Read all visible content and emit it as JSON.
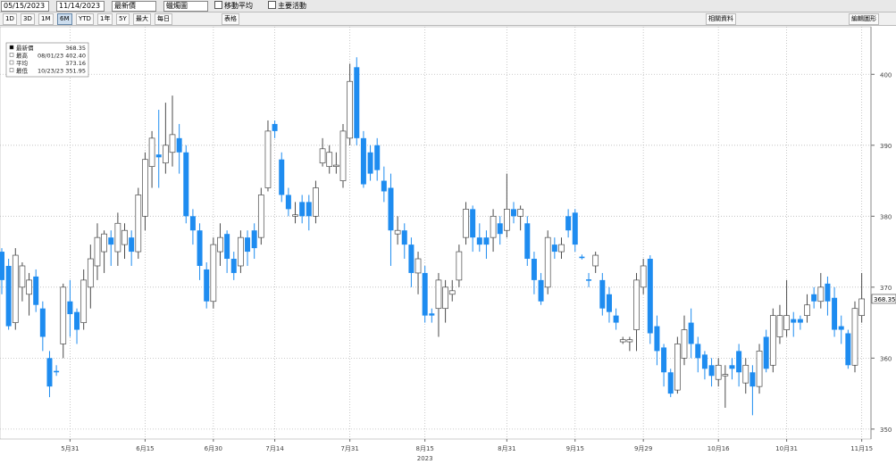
{
  "toolbar": {
    "start_date": "05/15/2023",
    "end_date": "11/14/2023",
    "field": "最新價",
    "chart_style": "蠟燭圖",
    "moving_average": "移動平均",
    "events": "主要活動",
    "periods": [
      "1D",
      "3D",
      "1M",
      "6M",
      "YTD",
      "1年",
      "5Y",
      "最大"
    ],
    "frequency": "每日",
    "table": "表格",
    "related": "相關資料",
    "edit": "編輯圖形"
  },
  "chart_data": {
    "type": "candlestick",
    "legend": [
      {
        "name": "最新價",
        "value": "368.35"
      },
      {
        "name": "最高",
        "date": "08/01/23",
        "value": "402.40"
      },
      {
        "name": "平均",
        "value": "373.16"
      },
      {
        "name": "最低",
        "date": "10/23/23",
        "value": "351.95"
      }
    ],
    "x_label": "2023",
    "categories": [
      null,
      null,
      null,
      null,
      null,
      null,
      null,
      null,
      null,
      null,
      "5月31",
      null,
      null,
      null,
      null,
      null,
      null,
      null,
      null,
      null,
      null,
      "6月15",
      null,
      null,
      null,
      null,
      null,
      null,
      null,
      null,
      null,
      "6月30",
      null,
      null,
      null,
      null,
      null,
      null,
      null,
      null,
      "7月14",
      null,
      null,
      null,
      null,
      null,
      null,
      null,
      null,
      null,
      null,
      "7月31",
      null,
      null,
      null,
      null,
      null,
      null,
      null,
      null,
      null,
      null,
      "8月15",
      null,
      null,
      null,
      null,
      null,
      null,
      null,
      null,
      null,
      null,
      null,
      "8月31",
      null,
      null,
      null,
      null,
      null,
      null,
      null,
      null,
      null,
      "9月15",
      null,
      null,
      null,
      null,
      null,
      null,
      null,
      null,
      null,
      "9月29",
      null,
      null,
      null,
      null,
      null,
      null,
      null,
      null,
      null,
      null,
      "10月16",
      null,
      null,
      null,
      null,
      null,
      null,
      null,
      null,
      null,
      "10月31",
      null,
      null,
      null,
      null,
      null,
      null,
      null,
      null,
      null,
      null,
      "11月15"
    ],
    "open": [
      375,
      373,
      365,
      370,
      369,
      371.5,
      367,
      360,
      358.2,
      362,
      368,
      366.5,
      365,
      370,
      373,
      375,
      377,
      375,
      376,
      377,
      375,
      380,
      387,
      388.7,
      387.5,
      389,
      391,
      389,
      380,
      378,
      372.5,
      368,
      375,
      377.5,
      374,
      373,
      377,
      378,
      377,
      384,
      393,
      388,
      383,
      380,
      382,
      382,
      380,
      387.5,
      387,
      387,
      385,
      391,
      401,
      391,
      389,
      390,
      385,
      384,
      377.5,
      378,
      376,
      372,
      372,
      366.3,
      367,
      367,
      369,
      371,
      377,
      381,
      377,
      377,
      377,
      379,
      378,
      381,
      380,
      379,
      374,
      371,
      370,
      376,
      375,
      380,
      380.5,
      374.3,
      371.1,
      373,
      371,
      369,
      366,
      362.3,
      362.3,
      364,
      370,
      374,
      364.5,
      361.5,
      358,
      355.5,
      360,
      365,
      362,
      360.5,
      359,
      357,
      357.5,
      359,
      361,
      356.5,
      358,
      356,
      363,
      359,
      363,
      364,
      365.5,
      365.5,
      366,
      369,
      368,
      370.5,
      368.5,
      364.5,
      363.5,
      359,
      366
    ],
    "high": [
      375.5,
      374,
      375.5,
      373.5,
      372,
      372.5,
      368,
      361,
      359,
      370.5,
      371,
      367,
      372.5,
      376,
      379,
      378,
      378,
      380.5,
      379,
      378,
      384,
      389,
      392,
      395,
      396,
      397,
      393,
      390,
      381,
      379,
      373.5,
      377,
      379,
      378,
      375,
      378,
      378,
      379,
      384,
      393.5,
      393.5,
      389,
      384,
      382,
      383,
      383,
      385,
      391,
      390,
      389,
      393,
      401.5,
      402.4,
      392,
      390,
      391,
      387,
      386,
      380,
      379,
      377,
      375,
      373,
      367,
      372,
      371,
      371,
      376,
      382,
      381.5,
      379,
      378,
      381,
      380,
      386,
      382,
      381.5,
      380,
      375,
      372,
      378,
      377,
      377,
      381,
      381,
      374.6,
      372,
      375,
      372,
      370,
      367,
      363,
      363,
      372,
      374,
      374.5,
      366,
      362,
      358.5,
      363,
      366,
      367,
      363,
      361,
      360,
      360,
      359,
      360,
      362,
      360,
      359,
      362,
      364,
      367,
      367.5,
      371,
      366.5,
      366,
      369,
      370,
      372,
      371.5,
      370,
      366,
      364,
      368,
      372
    ],
    "low": [
      369,
      364,
      364,
      368,
      366,
      366.5,
      361,
      354.5,
      357.5,
      360,
      363,
      362,
      364,
      367,
      371,
      372,
      373,
      373,
      374,
      373,
      374,
      378,
      384,
      384,
      386,
      387,
      386,
      379,
      376,
      371,
      367,
      367,
      373,
      372,
      371,
      372,
      373,
      374,
      376,
      383.5,
      391,
      382,
      380,
      379,
      379,
      378,
      379,
      387,
      386,
      386,
      384,
      390,
      390,
      384,
      385,
      385,
      382,
      373,
      376,
      374,
      370,
      369,
      365,
      365,
      363,
      365,
      368,
      370,
      376,
      375,
      375,
      374,
      375,
      376,
      377,
      379,
      378,
      373,
      369,
      367.5,
      369,
      374,
      374,
      377,
      375,
      373.9,
      370,
      372,
      366,
      365,
      364,
      362,
      361,
      361,
      369,
      362,
      359,
      356,
      354.5,
      355,
      359,
      360,
      358,
      357,
      356,
      356,
      353,
      357,
      356,
      355,
      351.95,
      355,
      358,
      358,
      362,
      363,
      363,
      364,
      365,
      367,
      367,
      366,
      363,
      362,
      358.5,
      358,
      365
    ],
    "close": [
      371,
      364.5,
      374.5,
      373,
      371,
      367.5,
      363,
      356,
      358,
      370,
      366.2,
      364,
      371,
      374,
      377,
      377.5,
      376,
      379,
      378,
      375,
      383,
      388,
      391,
      388.3,
      390,
      391.5,
      389,
      380,
      378,
      373,
      368,
      376,
      377,
      374,
      372,
      377,
      375,
      375.5,
      383,
      392,
      392,
      383,
      381,
      380.2,
      380,
      380,
      384,
      389.5,
      389,
      387.2,
      392,
      399,
      391,
      384.5,
      386,
      386.5,
      383.5,
      378,
      378,
      376,
      372,
      374,
      366,
      366,
      371,
      370,
      369.5,
      375,
      381,
      377,
      376,
      376,
      380,
      377.5,
      381,
      380,
      381,
      374,
      371,
      368,
      377,
      375,
      376,
      378,
      376,
      374.1,
      370.9,
      374.5,
      367,
      366.5,
      365,
      362.6,
      362.6,
      371,
      373,
      363.5,
      361,
      358,
      355,
      362,
      364,
      362,
      360,
      358.5,
      357.5,
      359,
      357.7,
      358.5,
      358,
      359,
      356,
      361,
      358.5,
      366,
      366,
      366,
      365,
      365,
      367.5,
      368,
      370,
      368,
      364,
      364,
      359,
      367,
      368.35
    ],
    "up_color": "#ffffff",
    "down_color": "#1e8cf0",
    "outline_color": "#4a4a4a",
    "ylim": [
      348.6,
      406.7
    ],
    "yticks": [
      350,
      360,
      370,
      380,
      390,
      400
    ],
    "grid": true
  }
}
